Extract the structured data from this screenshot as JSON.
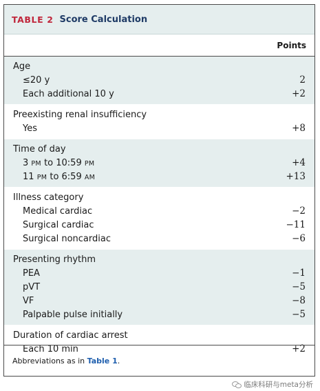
{
  "title": {
    "number": "TABLE 2",
    "text": "Score Calculation"
  },
  "header": {
    "points": "Points"
  },
  "groups": [
    {
      "label": "Age",
      "rows": [
        {
          "label": "≤20 y",
          "value": "2"
        },
        {
          "label": "Each additional 10 y",
          "value": "+2"
        }
      ]
    },
    {
      "label": "Preexisting renal insufficiency",
      "rows": [
        {
          "label": "Yes",
          "value": "+8"
        }
      ]
    },
    {
      "label": "Time of day",
      "rows": [
        {
          "label_parts": [
            "3 ",
            "PM",
            " to 10:59 ",
            "PM"
          ],
          "value": "+4"
        },
        {
          "label_parts": [
            "11 ",
            "PM",
            " to 6:59 ",
            "AM"
          ],
          "value": "+13"
        }
      ]
    },
    {
      "label": "Illness category",
      "rows": [
        {
          "label": "Medical cardiac",
          "value": "−2"
        },
        {
          "label": "Surgical cardiac",
          "value": "−11"
        },
        {
          "label": "Surgical noncardiac",
          "value": "−6"
        }
      ]
    },
    {
      "label": "Presenting rhythm",
      "rows": [
        {
          "label": "PEA",
          "value": "−1"
        },
        {
          "label": "pVT",
          "value": "−5"
        },
        {
          "label": "VF",
          "value": "−8"
        },
        {
          "label": "Palpable pulse initially",
          "value": "−5"
        }
      ]
    },
    {
      "label": "Duration of cardiac arrest",
      "rows": [
        {
          "label": "Each 10 min",
          "value": "+2"
        }
      ]
    }
  ],
  "footer": {
    "prefix": "Abbreviations as in ",
    "link": "Table 1",
    "suffix": "."
  },
  "watermark": {
    "text": "临床科研与meta分析",
    "icon": "wechat-icon"
  }
}
